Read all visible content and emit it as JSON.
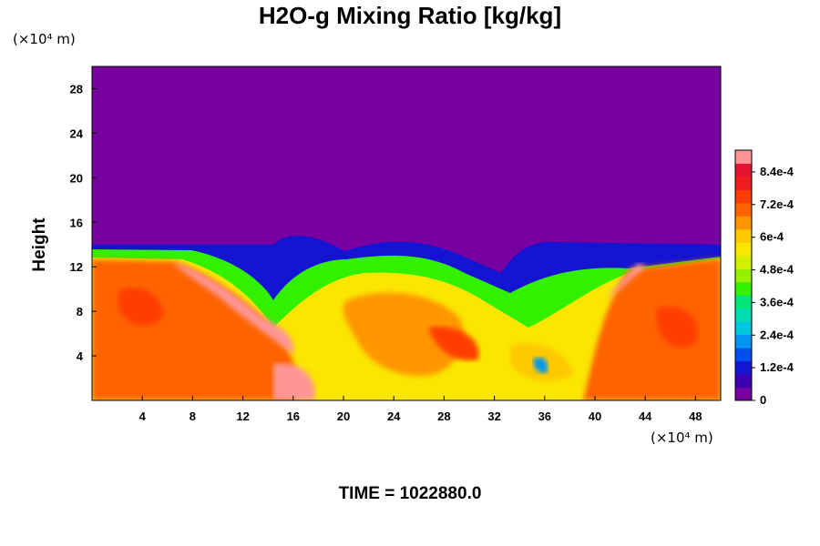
{
  "chart_data": {
    "type": "heatmap",
    "title": "H2O-g Mixing Ratio [kg/kg]",
    "xlabel": "",
    "ylabel": "Height",
    "x_unit_text": "(×10⁴ m)",
    "y_unit_text": "(×10⁴ m)",
    "x_ticks": [
      "4",
      "8",
      "12",
      "16",
      "20",
      "24",
      "28",
      "32",
      "36",
      "40",
      "44",
      "48"
    ],
    "y_ticks": [
      "4",
      "8",
      "12",
      "16",
      "20",
      "24",
      "28"
    ],
    "xlim": [
      0,
      50
    ],
    "ylim": [
      0,
      30
    ],
    "colorbar": {
      "min": 0,
      "max": 0.00092,
      "tick_labels": [
        "0",
        "1.2e-4",
        "2.4e-4",
        "3.6e-4",
        "4.8e-4",
        "6e-4",
        "7.2e-4",
        "8.4e-4"
      ],
      "tick_values": [
        0,
        0.00012,
        0.00024,
        0.00036,
        0.00048,
        0.0006,
        0.00072,
        0.00084
      ]
    },
    "top_region_value": 0,
    "moist_layer_top_height": 14,
    "footer": "TIME = 1022880.0"
  }
}
